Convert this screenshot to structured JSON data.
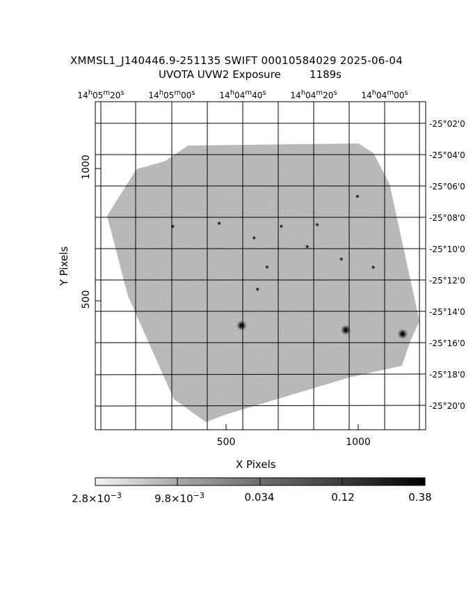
{
  "title_line1": "XMMSL1_J140446.9-251135 SWIFT 00010584029 2025-06-04",
  "title_line2": "UVOTA UVW2 Exposure",
  "exposure": "1189s",
  "ra_ticks": [
    {
      "h": "14",
      "m": "05",
      "s": "20"
    },
    {
      "h": "14",
      "m": "05",
      "s": "00"
    },
    {
      "h": "14",
      "m": "04",
      "s": "40"
    },
    {
      "h": "14",
      "m": "04",
      "s": "20"
    },
    {
      "h": "14",
      "m": "04",
      "s": "00"
    }
  ],
  "dec_ticks": [
    "-25°02'0",
    "-25°04'0",
    "-25°06'0",
    "-25°08'0",
    "-25°10'0",
    "-25°12'0",
    "-25°14'0",
    "-25°16'0",
    "-25°18'0",
    "-25°20'0"
  ],
  "x_ticks": [
    "500",
    "1000"
  ],
  "y_ticks": [
    "1000",
    "500"
  ],
  "xlabel": "X Pixels",
  "ylabel": "Y Pixels",
  "colorbar_labels": [
    {
      "mant": "2.8×10",
      "exp": "−3"
    },
    {
      "mant": "9.8×10",
      "exp": "−3"
    },
    {
      "mant": "0.034",
      "exp": ""
    },
    {
      "mant": "0.12",
      "exp": ""
    },
    {
      "mant": "0.38",
      "exp": ""
    }
  ],
  "sources": [
    {
      "name": "bright-source-1",
      "x": 559,
      "y": 407
    },
    {
      "name": "bright-source-2",
      "x": 953,
      "y": 390
    },
    {
      "name": "bright-source-3",
      "x": 1168,
      "y": 375
    },
    {
      "name": "source-4",
      "x": 807,
      "y": 705
    },
    {
      "name": "source-5",
      "x": 655,
      "y": 628
    },
    {
      "name": "source-6",
      "x": 298,
      "y": 781
    },
    {
      "name": "source-7",
      "x": 474,
      "y": 793
    },
    {
      "name": "source-8",
      "x": 709,
      "y": 782
    },
    {
      "name": "source-9",
      "x": 845,
      "y": 788
    },
    {
      "name": "source-10",
      "x": 936,
      "y": 658
    },
    {
      "name": "source-11",
      "x": 619,
      "y": 544
    },
    {
      "name": "source-12",
      "x": 997,
      "y": 895
    },
    {
      "name": "source-13",
      "x": 606,
      "y": 738
    },
    {
      "name": "source-14",
      "x": 1057,
      "y": 627
    }
  ]
}
